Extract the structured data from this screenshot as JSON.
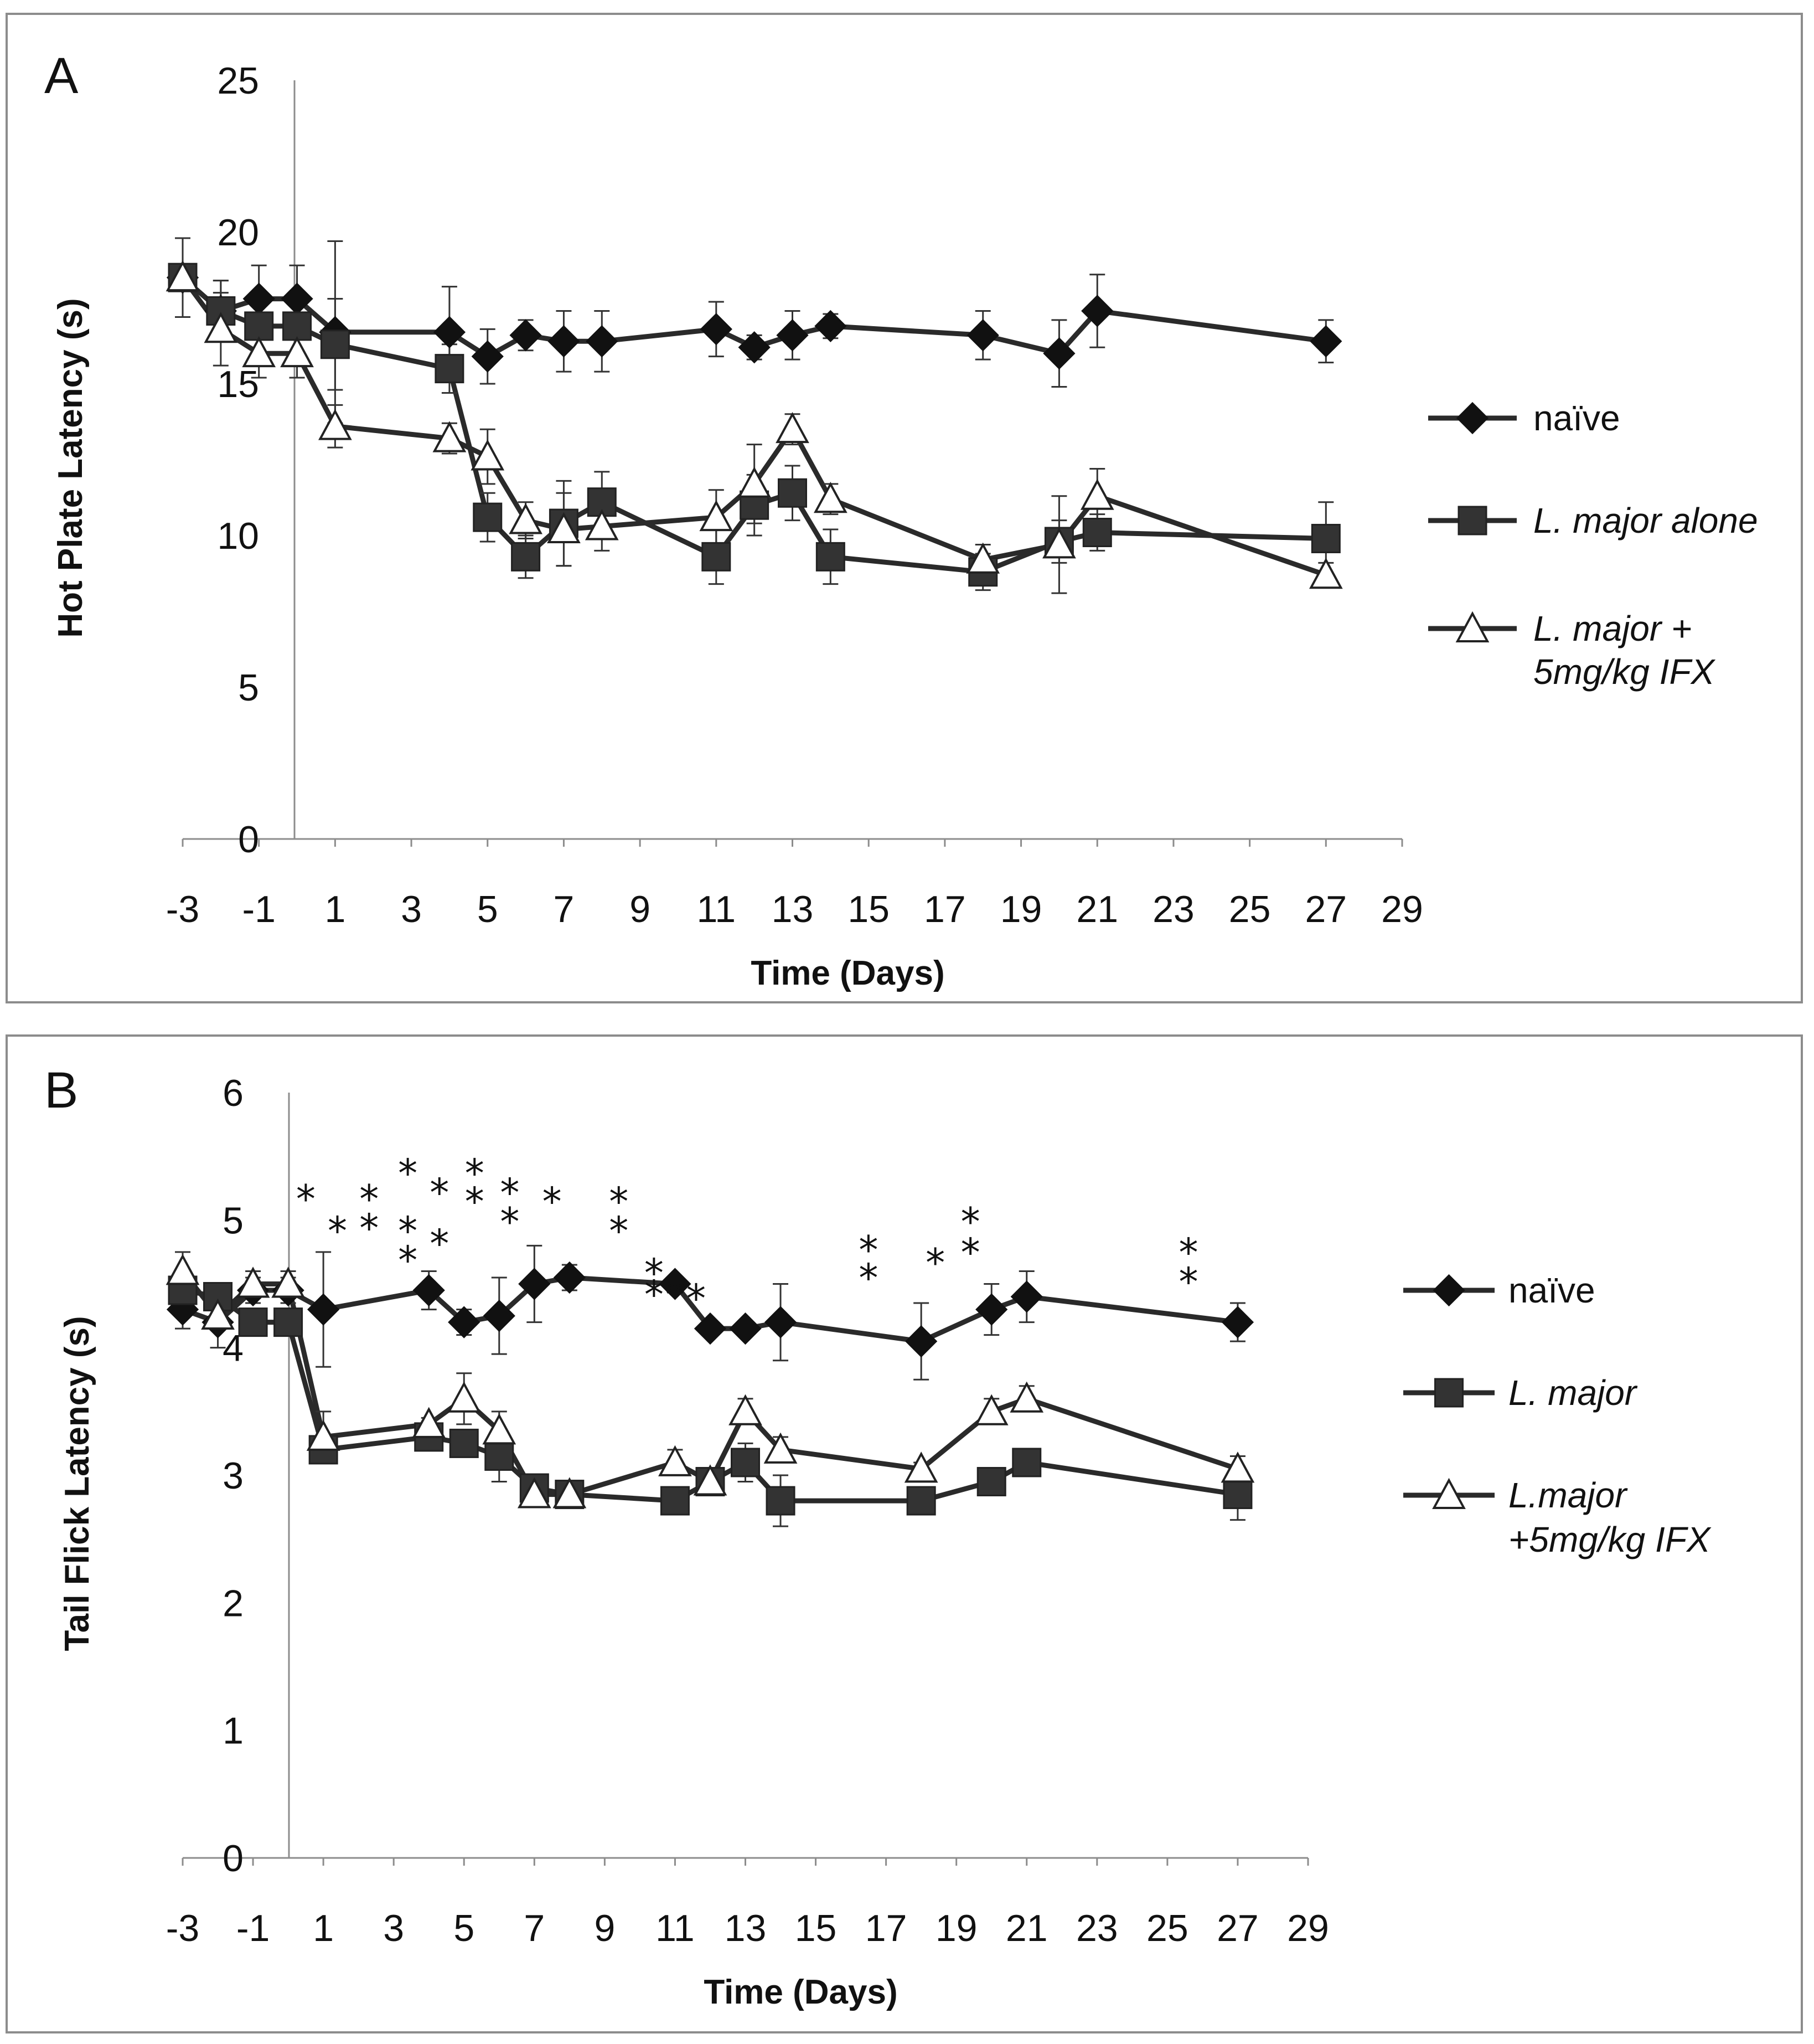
{
  "chart_data": [
    {
      "type": "line",
      "panel_label": "A",
      "xlabel": "Time (Days)",
      "ylabel": "Hot Plate Latency (s)",
      "xlim": [
        -3,
        29
      ],
      "ylim": [
        0,
        25
      ],
      "xticks": [
        -3,
        -1,
        1,
        3,
        5,
        7,
        9,
        11,
        13,
        15,
        17,
        19,
        21,
        23,
        25,
        27,
        29
      ],
      "yticks": [
        0,
        5,
        10,
        15,
        20,
        25
      ],
      "grid": false,
      "legend": "right",
      "series": [
        {
          "name": "naïve",
          "marker": "diamond",
          "italic": false,
          "x": [
            -3,
            -2,
            -1,
            0,
            1,
            4,
            5,
            6,
            7,
            8,
            11,
            12,
            13,
            14,
            18,
            20,
            21,
            27
          ],
          "y": [
            18.5,
            17.4,
            17.8,
            17.8,
            16.7,
            16.7,
            15.9,
            16.6,
            16.4,
            16.4,
            16.8,
            16.2,
            16.6,
            16.9,
            16.6,
            16.0,
            17.4,
            16.4
          ],
          "err": [
            1.3,
            1.0,
            1.1,
            1.1,
            3.0,
            1.5,
            0.9,
            0.5,
            1.0,
            1.0,
            0.9,
            0.4,
            0.8,
            0.4,
            0.8,
            1.1,
            1.2,
            0.7
          ]
        },
        {
          "name": "L. major alone",
          "marker": "square",
          "italic": true,
          "x": [
            -3,
            -2,
            -1,
            0,
            1,
            4,
            5,
            6,
            7,
            8,
            11,
            12,
            13,
            14,
            18,
            20,
            21,
            27
          ],
          "y": [
            18.5,
            17.4,
            16.9,
            16.9,
            16.3,
            15.5,
            10.6,
            9.3,
            10.4,
            11.1,
            9.3,
            11.0,
            11.4,
            9.3,
            8.8,
            9.8,
            10.1,
            9.9
          ],
          "err": [
            1.3,
            1.0,
            1.0,
            1.0,
            1.5,
            0.8,
            0.8,
            0.7,
            1.4,
            1.0,
            0.9,
            1.0,
            0.9,
            0.9,
            0.6,
            0.7,
            0.6,
            1.2
          ]
        },
        {
          "name": "L. major + 5mg/kg IFX",
          "label_lines": [
            "L. major +",
            "5mg/kg IFX"
          ],
          "marker": "triangle",
          "italic": true,
          "x": [
            -3,
            -2,
            -1,
            0,
            1,
            4,
            5,
            6,
            7,
            8,
            11,
            12,
            13,
            14,
            18,
            20,
            21,
            27
          ],
          "y": [
            18.5,
            16.8,
            16.0,
            16.0,
            13.6,
            13.2,
            12.6,
            10.5,
            10.2,
            10.3,
            10.6,
            11.7,
            13.5,
            11.2,
            9.2,
            9.7,
            11.3,
            8.7
          ],
          "err": [
            1.3,
            1.2,
            0.8,
            0.8,
            0.7,
            0.5,
            0.9,
            0.6,
            1.2,
            0.8,
            0.9,
            1.3,
            0.5,
            0.5,
            0.5,
            1.6,
            0.9,
            0.4
          ]
        }
      ]
    },
    {
      "type": "line",
      "panel_label": "B",
      "xlabel": "Time (Days)",
      "ylabel": "Tail Flick Latency (s)",
      "xlim": [
        -3,
        29
      ],
      "ylim": [
        0,
        6
      ],
      "xticks": [
        -3,
        -1,
        1,
        3,
        5,
        7,
        9,
        11,
        13,
        15,
        17,
        19,
        21,
        23,
        25,
        27,
        29
      ],
      "yticks": [
        0,
        1,
        2,
        3,
        4,
        5,
        6
      ],
      "grid": false,
      "legend": "right",
      "series": [
        {
          "name": "naïve",
          "marker": "diamond",
          "italic": false,
          "x": [
            -3,
            -2,
            -1,
            0,
            1,
            4,
            5,
            6,
            7,
            8,
            11,
            12,
            13,
            14,
            18,
            20,
            21,
            27
          ],
          "y": [
            4.3,
            4.2,
            4.45,
            4.45,
            4.3,
            4.45,
            4.2,
            4.25,
            4.5,
            4.55,
            4.5,
            4.15,
            4.15,
            4.2,
            4.05,
            4.3,
            4.4,
            4.2
          ],
          "err": [
            0.15,
            0.2,
            0.1,
            0.1,
            0.45,
            0.15,
            0.1,
            0.3,
            0.3,
            0.1,
            0.05,
            0.05,
            0.05,
            0.3,
            0.3,
            0.2,
            0.2,
            0.15
          ]
        },
        {
          "name": "L. major",
          "marker": "square",
          "italic": true,
          "x": [
            -3,
            -2,
            -1,
            0,
            1,
            4,
            5,
            6,
            7,
            8,
            11,
            12,
            13,
            14,
            18,
            20,
            21,
            27
          ],
          "y": [
            4.45,
            4.4,
            4.2,
            4.2,
            3.2,
            3.3,
            3.25,
            3.15,
            2.9,
            2.85,
            2.8,
            2.95,
            3.1,
            2.8,
            2.8,
            2.95,
            3.1,
            2.85
          ],
          "err": [
            0.1,
            0.1,
            0.1,
            0.1,
            0.1,
            0.1,
            0.1,
            0.2,
            0.1,
            0.1,
            0.05,
            0.05,
            0.15,
            0.2,
            0.05,
            0.05,
            0.05,
            0.2
          ]
        },
        {
          "name": "L.major +5mg/kg IFX",
          "label_lines": [
            "L.major",
            "+5mg/kg IFX"
          ],
          "marker": "triangle",
          "italic": true,
          "x": [
            -3,
            -2,
            -1,
            0,
            1,
            4,
            5,
            6,
            7,
            8,
            11,
            12,
            13,
            14,
            18,
            20,
            21,
            27
          ],
          "y": [
            4.6,
            4.25,
            4.5,
            4.5,
            3.3,
            3.4,
            3.6,
            3.35,
            2.85,
            2.85,
            3.1,
            2.95,
            3.5,
            3.2,
            3.05,
            3.5,
            3.6,
            3.05
          ],
          "err": [
            0.15,
            0.1,
            0.1,
            0.1,
            0.2,
            0.05,
            0.2,
            0.15,
            0.05,
            0.05,
            0.1,
            0.05,
            0.1,
            0.1,
            0.05,
            0.1,
            0.1,
            0.1
          ]
        }
      ],
      "annotations": [
        {
          "x": 0.5,
          "y": 5.2,
          "text": "*"
        },
        {
          "x": 1.4,
          "y": 4.95,
          "text": "*"
        },
        {
          "x": 2.3,
          "y": 5.2,
          "text": "*"
        },
        {
          "x": 2.3,
          "y": 4.97,
          "text": "*"
        },
        {
          "x": 3.4,
          "y": 5.4,
          "text": "*"
        },
        {
          "x": 3.4,
          "y": 4.95,
          "text": "*"
        },
        {
          "x": 3.4,
          "y": 4.72,
          "text": "*"
        },
        {
          "x": 4.3,
          "y": 5.25,
          "text": "*"
        },
        {
          "x": 4.3,
          "y": 4.85,
          "text": "*"
        },
        {
          "x": 5.3,
          "y": 5.4,
          "text": "*"
        },
        {
          "x": 5.3,
          "y": 5.18,
          "text": "*"
        },
        {
          "x": 6.3,
          "y": 5.25,
          "text": "*"
        },
        {
          "x": 6.3,
          "y": 5.02,
          "text": "*"
        },
        {
          "x": 7.5,
          "y": 5.18,
          "text": "*"
        },
        {
          "x": 9.4,
          "y": 5.18,
          "text": "*"
        },
        {
          "x": 9.4,
          "y": 4.95,
          "text": "*"
        },
        {
          "x": 10.4,
          "y": 4.62,
          "text": "*"
        },
        {
          "x": 10.4,
          "y": 4.45,
          "text": "*"
        },
        {
          "x": 11.0,
          "y": 4.45,
          "text": "*"
        },
        {
          "x": 11.6,
          "y": 4.42,
          "text": "*"
        },
        {
          "x": 16.5,
          "y": 4.8,
          "text": "*"
        },
        {
          "x": 16.5,
          "y": 4.58,
          "text": "*"
        },
        {
          "x": 18.4,
          "y": 4.7,
          "text": "*"
        },
        {
          "x": 19.4,
          "y": 5.02,
          "text": "*"
        },
        {
          "x": 19.4,
          "y": 4.78,
          "text": "*"
        },
        {
          "x": 25.6,
          "y": 4.78,
          "text": "*"
        },
        {
          "x": 25.6,
          "y": 4.55,
          "text": "*"
        }
      ]
    }
  ]
}
